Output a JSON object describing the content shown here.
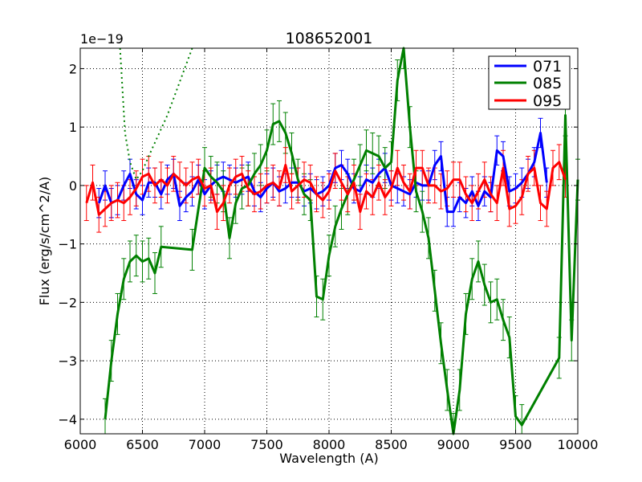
{
  "chart_data": {
    "type": "line",
    "title": "108652001",
    "xlabel": "Wavelength (A)",
    "ylabel": "Flux (erg/s/cm^2/A)",
    "offset_label": "1e−19",
    "xlim": [
      6000,
      10000
    ],
    "ylim": [
      -4.25,
      2.35
    ],
    "xticks": [
      6000,
      6500,
      7000,
      7500,
      8000,
      8500,
      9000,
      9500,
      10000
    ],
    "yticks": [
      -4,
      -3,
      -2,
      -1,
      0,
      1,
      2
    ],
    "ytick_labels": [
      "−4",
      "−3",
      "−2",
      "−1",
      "0",
      "1",
      "2"
    ],
    "grid": true,
    "legend_position": "top-right",
    "series": [
      {
        "name": "071",
        "color": "#0000ff",
        "x": [
          6150,
          6200,
          6250,
          6300,
          6350,
          6400,
          6450,
          6500,
          6550,
          6600,
          6650,
          6700,
          6750,
          6800,
          6850,
          6900,
          6950,
          7000,
          7050,
          7100,
          7150,
          7200,
          7250,
          7300,
          7350,
          7400,
          7450,
          7500,
          7550,
          7600,
          7650,
          7700,
          7750,
          7800,
          7850,
          7900,
          7950,
          8000,
          8050,
          8100,
          8150,
          8200,
          8250,
          8300,
          8350,
          8400,
          8450,
          8500,
          8550,
          8600,
          8650,
          8700,
          8750,
          8800,
          8850,
          8900,
          8950,
          9000,
          9050,
          9100,
          9150,
          9200,
          9250,
          9300,
          9350,
          9400,
          9450,
          9500,
          9550,
          9600,
          9650,
          9700,
          9750
        ],
        "y": [
          -0.3,
          0.0,
          -0.3,
          -0.25,
          0.0,
          0.2,
          -0.15,
          -0.25,
          0.05,
          0.05,
          -0.15,
          0.1,
          0.2,
          -0.35,
          -0.2,
          -0.1,
          0.1,
          -0.15,
          0.0,
          0.1,
          0.15,
          0.1,
          0.05,
          0.1,
          0.15,
          -0.1,
          -0.2,
          -0.05,
          0.05,
          -0.1,
          -0.05,
          0.05,
          0.05,
          -0.1,
          -0.05,
          -0.15,
          -0.1,
          0.0,
          0.3,
          0.35,
          0.2,
          -0.05,
          -0.1,
          0.1,
          0.05,
          0.2,
          0.3,
          0.0,
          -0.05,
          -0.1,
          -0.15,
          0.05,
          0.0,
          0.0,
          0.35,
          0.5,
          -0.45,
          -0.45,
          -0.2,
          -0.3,
          -0.1,
          -0.35,
          -0.1,
          -0.2,
          0.6,
          0.5,
          -0.1,
          -0.05,
          0.05,
          0.2,
          0.4,
          0.9,
          0.05
        ],
        "err": 0.25
      },
      {
        "name": "085",
        "color": "#008000",
        "x": [
          6200,
          6250,
          6300,
          6350,
          6400,
          6450,
          6500,
          6550,
          6600,
          6650,
          6900,
          7000,
          7050,
          7100,
          7150,
          7200,
          7250,
          7300,
          7350,
          7400,
          7450,
          7500,
          7550,
          7600,
          7650,
          7700,
          7750,
          7800,
          7850,
          7900,
          7950,
          8000,
          8050,
          8100,
          8150,
          8200,
          8250,
          8300,
          8350,
          8400,
          8450,
          8500,
          8550,
          8600,
          8650,
          8700,
          8750,
          8800,
          8850,
          8900,
          8950,
          9000,
          9050,
          9100,
          9150,
          9200,
          9250,
          9300,
          9350,
          9400,
          9450,
          9500,
          9550,
          9850,
          9900,
          9950,
          10000
        ],
        "y": [
          -4.0,
          -3.0,
          -2.2,
          -1.6,
          -1.3,
          -1.2,
          -1.3,
          -1.25,
          -1.5,
          -1.05,
          -1.1,
          0.3,
          0.15,
          0.05,
          -0.1,
          -0.9,
          -0.3,
          -0.05,
          0.0,
          0.2,
          0.35,
          0.6,
          1.05,
          1.1,
          0.9,
          0.55,
          0.1,
          -0.15,
          -0.25,
          -1.9,
          -1.95,
          -1.2,
          -0.7,
          -0.4,
          -0.15,
          0.1,
          0.35,
          0.6,
          0.55,
          0.5,
          0.3,
          0.4,
          1.8,
          2.35,
          1.0,
          -0.1,
          -0.45,
          -0.9,
          -1.8,
          -2.7,
          -3.5,
          -4.25,
          -3.5,
          -2.2,
          -1.6,
          -1.3,
          -1.7,
          -2.0,
          -1.95,
          -2.3,
          -2.6,
          -3.95,
          -4.1,
          -2.95,
          1.2,
          -2.65,
          0.1
        ],
        "err": 0.35,
        "dotted": [
          [
            6320,
            2.4
          ],
          [
            6360,
            0.9
          ],
          [
            6400,
            0.4
          ],
          [
            6450,
            0.1
          ],
          [
            6500,
            0.25
          ],
          [
            6550,
            0.5
          ],
          [
            6700,
            1.2
          ],
          [
            6900,
            2.4
          ]
        ]
      },
      {
        "name": "095",
        "color": "#ff0000",
        "x": [
          6050,
          6100,
          6150,
          6200,
          6250,
          6300,
          6350,
          6400,
          6450,
          6500,
          6550,
          6600,
          6650,
          6700,
          6750,
          6800,
          6850,
          6900,
          6950,
          7000,
          7050,
          7100,
          7150,
          7200,
          7250,
          7300,
          7350,
          7400,
          7450,
          7500,
          7550,
          7600,
          7650,
          7700,
          7750,
          7800,
          7850,
          7900,
          7950,
          8000,
          8050,
          8100,
          8150,
          8200,
          8250,
          8300,
          8350,
          8400,
          8450,
          8500,
          8550,
          8600,
          8650,
          8700,
          8750,
          8800,
          8850,
          8900,
          8950,
          9000,
          9050,
          9100,
          9150,
          9200,
          9250,
          9300,
          9350,
          9400,
          9450,
          9500,
          9550,
          9600,
          9650,
          9700,
          9750,
          9800,
          9850,
          9900
        ],
        "y": [
          -0.3,
          0.05,
          -0.5,
          -0.4,
          -0.3,
          -0.25,
          -0.3,
          -0.2,
          -0.05,
          0.15,
          0.2,
          0.0,
          0.1,
          0.0,
          0.2,
          0.1,
          0.0,
          0.1,
          0.15,
          -0.05,
          0.0,
          -0.45,
          -0.3,
          0.0,
          0.15,
          0.2,
          -0.05,
          -0.15,
          -0.1,
          0.0,
          0.05,
          -0.05,
          0.35,
          -0.1,
          0.0,
          0.1,
          0.05,
          -0.15,
          -0.25,
          -0.1,
          0.25,
          0.05,
          -0.15,
          0.05,
          -0.45,
          -0.1,
          -0.2,
          0.05,
          -0.2,
          -0.05,
          0.3,
          0.05,
          -0.1,
          0.3,
          0.3,
          0.0,
          0.0,
          -0.1,
          -0.05,
          0.1,
          0.1,
          -0.15,
          -0.3,
          -0.1,
          0.1,
          -0.15,
          -0.3,
          0.3,
          -0.4,
          -0.35,
          -0.2,
          0.2,
          0.3,
          -0.3,
          -0.4,
          0.3,
          0.4,
          0.1
        ],
        "err": 0.3
      }
    ]
  }
}
